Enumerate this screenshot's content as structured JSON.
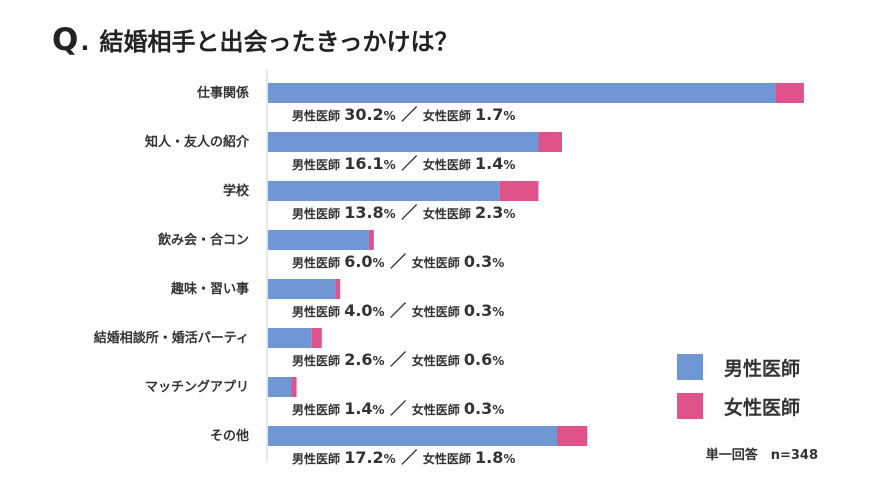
{
  "title": {
    "q": "Q",
    "dot": ".",
    "text": "結婚相手と出会ったきっかけは？"
  },
  "chart_data": {
    "type": "bar",
    "orientation": "horizontal",
    "stacked": true,
    "categories": [
      "仕事関係",
      "知人・友人の紹介",
      "学校",
      "飲み会・合コン",
      "趣味・習い事",
      "結婚相談所・婚活パーティ",
      "マッチングアプリ",
      "その他"
    ],
    "series": [
      {
        "name": "男性医師",
        "values": [
          30.2,
          16.1,
          13.8,
          6.0,
          4.0,
          2.6,
          1.4,
          17.2
        ],
        "color": "#7096d3"
      },
      {
        "name": "女性医師",
        "values": [
          1.7,
          1.4,
          2.3,
          0.3,
          0.3,
          0.6,
          0.3,
          1.8
        ],
        "color": "#e0528a"
      }
    ],
    "value_labels": {
      "male_prefix": "男性医師",
      "female_prefix": "女性医師",
      "separator": "／",
      "unit": "%"
    },
    "legend": {
      "placement": "bottom-right",
      "items": [
        "男性医師",
        "女性医師"
      ]
    },
    "grid": false,
    "axis_line": true,
    "xlim": [
      0,
      32
    ],
    "footnote": "単一回答　n=348"
  }
}
